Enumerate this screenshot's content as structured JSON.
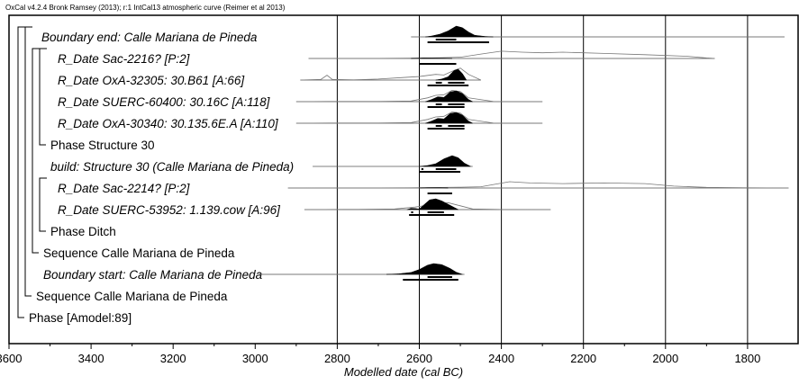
{
  "chart_data": {
    "type": "oxcal-multiplot",
    "header": "OxCal v4.2.4 Bronk Ramsey (2013); r:1 IntCal13 atmospheric curve (Reimer et al 2013)",
    "xlabel": "Modelled date (cal BC)",
    "xlim": [
      3600,
      1700
    ],
    "x_axis_direction": "BC decreasing left-to-right",
    "x_ticks": [
      3600,
      3400,
      3200,
      3000,
      2800,
      2600,
      2400,
      2200,
      2000,
      1800
    ],
    "gridlines_at": [
      2800,
      2600,
      2400,
      2200,
      2000,
      1800
    ],
    "rows": [
      {
        "label": "Boundary end: Calle Mariana de Pineda",
        "italic": true,
        "kind": "boundary",
        "range_line": [
          2620,
          1710
        ],
        "prior": [
          [
            2620,
            0
          ],
          [
            2500,
            0
          ],
          [
            2200,
            0
          ],
          [
            1710,
            0
          ]
        ],
        "posterior": [
          [
            2585,
            0
          ],
          [
            2570,
            0.08
          ],
          [
            2550,
            0.25
          ],
          [
            2530,
            0.55
          ],
          [
            2510,
            1.0
          ],
          [
            2495,
            0.85
          ],
          [
            2480,
            0.45
          ],
          [
            2465,
            0.15
          ],
          [
            2440,
            0.04
          ],
          [
            2420,
            0
          ]
        ],
        "hpd68": [
          [
            2560,
            2510
          ]
        ],
        "hpd95": [
          [
            2580,
            2430
          ]
        ]
      },
      {
        "label": "R_Date Sac-2216? [P:2]",
        "italic": true,
        "kind": "date",
        "range_line": [
          2870,
          1880
        ],
        "prior": [
          [
            2870,
            0
          ],
          [
            2700,
            0.01
          ],
          [
            2580,
            0.03
          ],
          [
            2500,
            0.1
          ],
          [
            2450,
            0.35
          ],
          [
            2400,
            0.58
          ],
          [
            2350,
            0.5
          ],
          [
            2300,
            0.45
          ],
          [
            2250,
            0.5
          ],
          [
            2150,
            0.4
          ],
          [
            2050,
            0.3
          ],
          [
            1950,
            0.18
          ],
          [
            1900,
            0.04
          ],
          [
            1880,
            0
          ]
        ],
        "posterior": [
          [
            2620,
            0
          ],
          [
            2590,
            0.05
          ],
          [
            2560,
            0.04
          ],
          [
            2530,
            0.02
          ],
          [
            2520,
            0
          ]
        ],
        "hpd68": [],
        "hpd95": [
          [
            2600,
            2510
          ]
        ]
      },
      {
        "label": "R_Date OxA-32305: 30.B61 [A:66]",
        "italic": true,
        "kind": "date",
        "range_line": [
          2890,
          2450
        ],
        "prior": [
          [
            2890,
            0
          ],
          [
            2840,
            0.05
          ],
          [
            2825,
            0.38
          ],
          [
            2812,
            0.05
          ],
          [
            2760,
            0.02
          ],
          [
            2700,
            0.08
          ],
          [
            2640,
            0.2
          ],
          [
            2600,
            0.28
          ],
          [
            2560,
            0.45
          ],
          [
            2540,
            0.4
          ],
          [
            2520,
            0.7
          ],
          [
            2500,
            0.95
          ],
          [
            2480,
            0.45
          ],
          [
            2450,
            0
          ]
        ],
        "posterior": [
          [
            2560,
            0
          ],
          [
            2545,
            0.1
          ],
          [
            2530,
            0.3
          ],
          [
            2515,
            0.9
          ],
          [
            2505,
            1.0
          ],
          [
            2495,
            0.6
          ],
          [
            2485,
            0
          ]
        ],
        "hpd68": [
          [
            2560,
            2545
          ],
          [
            2530,
            2490
          ]
        ],
        "hpd95": [
          [
            2580,
            2480
          ]
        ]
      },
      {
        "label": "R_Date SUERC-60400: 30.16C [A:118]",
        "italic": true,
        "kind": "date",
        "range_line": [
          2900,
          2300
        ],
        "prior": [
          [
            2900,
            0
          ],
          [
            2820,
            0.02
          ],
          [
            2700,
            0.02
          ],
          [
            2620,
            0.05
          ],
          [
            2580,
            0.3
          ],
          [
            2560,
            0.5
          ],
          [
            2540,
            0.55
          ],
          [
            2520,
            0.9
          ],
          [
            2500,
            0.8
          ],
          [
            2480,
            0.3
          ],
          [
            2420,
            0.02
          ],
          [
            2300,
            0
          ]
        ],
        "posterior": [
          [
            2585,
            0
          ],
          [
            2570,
            0.2
          ],
          [
            2555,
            0.45
          ],
          [
            2540,
            0.4
          ],
          [
            2525,
            0.9
          ],
          [
            2510,
            1.0
          ],
          [
            2495,
            0.75
          ],
          [
            2480,
            0.2
          ],
          [
            2470,
            0
          ]
        ],
        "hpd68": [
          [
            2560,
            2545
          ],
          [
            2530,
            2490
          ]
        ],
        "hpd95": [
          [
            2580,
            2490
          ]
        ]
      },
      {
        "label": "R_Date OxA-30340: 30.135.6E.A [A:110]",
        "italic": true,
        "kind": "date",
        "range_line": [
          2900,
          2300
        ],
        "prior": [
          [
            2900,
            0
          ],
          [
            2820,
            0.02
          ],
          [
            2700,
            0.02
          ],
          [
            2620,
            0.05
          ],
          [
            2580,
            0.3
          ],
          [
            2560,
            0.5
          ],
          [
            2540,
            0.55
          ],
          [
            2520,
            0.9
          ],
          [
            2500,
            0.8
          ],
          [
            2480,
            0.3
          ],
          [
            2420,
            0.02
          ],
          [
            2300,
            0
          ]
        ],
        "posterior": [
          [
            2585,
            0
          ],
          [
            2570,
            0.2
          ],
          [
            2555,
            0.45
          ],
          [
            2540,
            0.4
          ],
          [
            2525,
            0.9
          ],
          [
            2510,
            1.0
          ],
          [
            2495,
            0.75
          ],
          [
            2480,
            0.2
          ],
          [
            2470,
            0
          ]
        ],
        "hpd68": [
          [
            2560,
            2545
          ],
          [
            2530,
            2490
          ]
        ],
        "hpd95": [
          [
            2580,
            2490
          ]
        ]
      },
      {
        "label": "Phase Structure 30",
        "italic": false,
        "kind": "phase"
      },
      {
        "label": "build: Structure 30 (Calle Mariana de Pineda)",
        "italic": true,
        "kind": "interval",
        "range_line": [
          2860,
          2470
        ],
        "prior": [],
        "posterior": [
          [
            2600,
            0
          ],
          [
            2580,
            0.08
          ],
          [
            2560,
            0.25
          ],
          [
            2540,
            0.7
          ],
          [
            2520,
            1.0
          ],
          [
            2505,
            0.8
          ],
          [
            2490,
            0.3
          ],
          [
            2475,
            0
          ]
        ],
        "hpd68": [
          [
            2595,
            2590
          ],
          [
            2560,
            2510
          ]
        ],
        "hpd95": [
          [
            2600,
            2500
          ]
        ]
      },
      {
        "label": "R_Date Sac-2214? [P:2]",
        "italic": true,
        "kind": "date",
        "range_line": [
          2920,
          1700
        ],
        "prior": [
          [
            2920,
            0
          ],
          [
            2700,
            0.01
          ],
          [
            2620,
            0.02
          ],
          [
            2500,
            0.06
          ],
          [
            2450,
            0.1
          ],
          [
            2380,
            0.5
          ],
          [
            2330,
            0.4
          ],
          [
            2250,
            0.35
          ],
          [
            2150,
            0.4
          ],
          [
            2050,
            0.35
          ],
          [
            1980,
            0.15
          ],
          [
            1900,
            0.05
          ],
          [
            1800,
            0.02
          ],
          [
            1700,
            0
          ]
        ],
        "posterior": [
          [
            2600,
            0
          ],
          [
            2580,
            0.03
          ],
          [
            2550,
            0.03
          ],
          [
            2530,
            0
          ]
        ],
        "hpd68": [],
        "hpd95": [
          [
            2580,
            2520
          ]
        ]
      },
      {
        "label": "R_Date SUERC-53952: 1.139.cow [A:96]",
        "italic": true,
        "kind": "date",
        "range_line": [
          2880,
          2280
        ],
        "prior": [
          [
            2880,
            0
          ],
          [
            2750,
            0.02
          ],
          [
            2660,
            0.05
          ],
          [
            2610,
            0.2
          ],
          [
            2580,
            0.35
          ],
          [
            2560,
            0.4
          ],
          [
            2530,
            0.55
          ],
          [
            2500,
            0.3
          ],
          [
            2470,
            0.05
          ],
          [
            2400,
            0.01
          ],
          [
            2280,
            0
          ]
        ],
        "posterior": [
          [
            2630,
            0
          ],
          [
            2620,
            0.12
          ],
          [
            2610,
            0.1
          ],
          [
            2600,
            0.05
          ],
          [
            2590,
            0.4
          ],
          [
            2575,
            0.9
          ],
          [
            2560,
            1.0
          ],
          [
            2545,
            0.8
          ],
          [
            2530,
            0.5
          ],
          [
            2515,
            0.2
          ],
          [
            2505,
            0
          ]
        ],
        "hpd68": [
          [
            2620,
            2615
          ],
          [
            2580,
            2540
          ]
        ],
        "hpd95": [
          [
            2625,
            2515
          ]
        ]
      },
      {
        "label": "Phase Ditch",
        "italic": false,
        "kind": "phase"
      },
      {
        "label": "Sequence Calle Mariana de Pineda",
        "italic": false,
        "kind": "sequence"
      },
      {
        "label": "Boundary start: Calle Mariana de Pineda",
        "italic": true,
        "kind": "boundary",
        "range_line": [
          2990,
          2490
        ],
        "prior": [
          [
            2990,
            0
          ],
          [
            2800,
            0
          ],
          [
            2500,
            0
          ]
        ],
        "posterior": [
          [
            2680,
            0
          ],
          [
            2650,
            0.05
          ],
          [
            2620,
            0.18
          ],
          [
            2600,
            0.45
          ],
          [
            2580,
            0.85
          ],
          [
            2565,
            1.0
          ],
          [
            2545,
            0.9
          ],
          [
            2525,
            0.55
          ],
          [
            2510,
            0.2
          ],
          [
            2495,
            0
          ]
        ],
        "hpd68": [
          [
            2580,
            2520
          ]
        ],
        "hpd95": [
          [
            2640,
            2505
          ]
        ]
      },
      {
        "label": "Sequence Calle Mariana de Pineda",
        "italic": false,
        "kind": "sequence"
      },
      {
        "label": "Phase [Amodel:89]",
        "italic": false,
        "kind": "phase"
      }
    ]
  }
}
